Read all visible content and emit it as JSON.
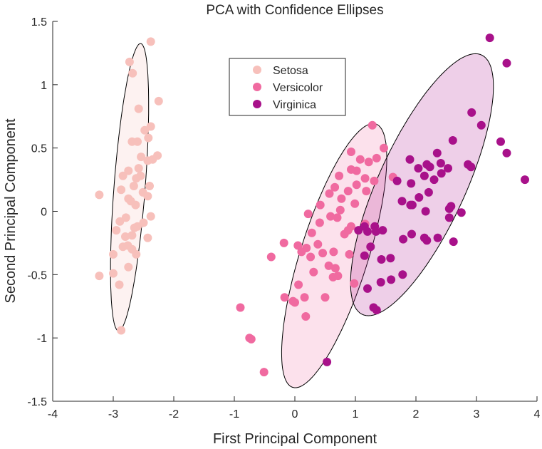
{
  "chart_data": {
    "type": "scatter",
    "title": "PCA with Confidence Ellipses",
    "xlabel": "First Principal Component",
    "ylabel": "Second Principal Component",
    "xlim": [
      -4,
      4
    ],
    "ylim": [
      -1.5,
      1.5
    ],
    "xticks": [
      -4,
      -3,
      -2,
      -1,
      0,
      1,
      2,
      3,
      4
    ],
    "yticks": [
      -1.5,
      -1,
      -0.5,
      0,
      0.5,
      1,
      1.5
    ],
    "xtick_labels": [
      "-4",
      "-3",
      "-2",
      "-1",
      "0",
      "1",
      "2",
      "3",
      "4"
    ],
    "ytick_labels": [
      "-1.5",
      "-1",
      "-0.5",
      "0",
      "0.5",
      "1",
      "1.5"
    ],
    "grid": false,
    "legend_position": "top-center",
    "series": [
      {
        "name": "Setosa",
        "color": "#f7c0bb",
        "ellipse": {
          "center": [
            -2.73,
            0.19
          ],
          "semi_major": 1.15,
          "semi_minor": 0.255,
          "angle_deg": 80.5
        },
        "points": [
          [
            -2.38,
            1.34
          ],
          [
            -2.73,
            1.18
          ],
          [
            -2.68,
            1.09
          ],
          [
            -2.25,
            0.87
          ],
          [
            -2.58,
            0.81
          ],
          [
            -2.38,
            0.67
          ],
          [
            -2.48,
            0.64
          ],
          [
            -2.42,
            0.58
          ],
          [
            -2.69,
            0.55
          ],
          [
            -2.6,
            0.55
          ],
          [
            -2.27,
            0.44
          ],
          [
            -2.54,
            0.43
          ],
          [
            -2.35,
            0.41
          ],
          [
            -2.43,
            0.4
          ],
          [
            -2.58,
            0.34
          ],
          [
            -2.75,
            0.32
          ],
          [
            -2.84,
            0.28
          ],
          [
            -2.55,
            0.28
          ],
          [
            -2.62,
            0.26
          ],
          [
            -2.4,
            0.2
          ],
          [
            -2.66,
            0.2
          ],
          [
            -2.87,
            0.17
          ],
          [
            -2.51,
            0.15
          ],
          [
            -2.43,
            0.12
          ],
          [
            -2.75,
            0.1
          ],
          [
            -2.71,
            0.08
          ],
          [
            -2.63,
            0.05
          ],
          [
            -3.23,
            0.13
          ],
          [
            -2.38,
            -0.04
          ],
          [
            -2.79,
            -0.05
          ],
          [
            -2.89,
            -0.08
          ],
          [
            -2.5,
            -0.09
          ],
          [
            -2.6,
            -0.12
          ],
          [
            -2.65,
            -0.13
          ],
          [
            -2.95,
            -0.15
          ],
          [
            -2.69,
            -0.19
          ],
          [
            -2.8,
            -0.2
          ],
          [
            -2.43,
            -0.21
          ],
          [
            -2.76,
            -0.27
          ],
          [
            -2.69,
            -0.3
          ],
          [
            -2.84,
            -0.28
          ],
          [
            -2.62,
            -0.34
          ],
          [
            -3.0,
            -0.34
          ],
          [
            -2.75,
            -0.44
          ],
          [
            -3.0,
            -0.49
          ],
          [
            -3.23,
            -0.51
          ],
          [
            -2.9,
            -0.58
          ],
          [
            -2.87,
            -0.94
          ]
        ]
      },
      {
        "name": "Versicolor",
        "color": "#f06aa0",
        "ellipse": {
          "center": [
            0.65,
            -0.35
          ],
          "semi_major": 1.27,
          "semi_minor": 0.48,
          "angle_deg": 52
        },
        "points": [
          [
            1.28,
            0.68
          ],
          [
            1.47,
            0.5
          ],
          [
            0.93,
            0.47
          ],
          [
            1.08,
            0.41
          ],
          [
            1.35,
            0.42
          ],
          [
            1.22,
            0.39
          ],
          [
            0.93,
            0.33
          ],
          [
            1.02,
            0.32
          ],
          [
            1.62,
            0.27
          ],
          [
            1.31,
            0.24
          ],
          [
            0.73,
            0.28
          ],
          [
            1.16,
            0.26
          ],
          [
            1.02,
            0.21
          ],
          [
            0.66,
            0.19
          ],
          [
            0.88,
            0.16
          ],
          [
            0.57,
            0.14
          ],
          [
            1.18,
            0.16
          ],
          [
            0.77,
            0.1
          ],
          [
            0.42,
            0.05
          ],
          [
            0.99,
            0.06
          ],
          [
            0.75,
            0.01
          ],
          [
            0.22,
            -0.02
          ],
          [
            0.59,
            -0.04
          ],
          [
            0.41,
            -0.09
          ],
          [
            0.7,
            -0.05
          ],
          [
            1.16,
            -0.1
          ],
          [
            0.93,
            -0.12
          ],
          [
            0.88,
            -0.15
          ],
          [
            0.82,
            -0.18
          ],
          [
            0.28,
            -0.17
          ],
          [
            -0.18,
            -0.25
          ],
          [
            0.05,
            -0.27
          ],
          [
            0.38,
            -0.26
          ],
          [
            0.19,
            -0.29
          ],
          [
            0.64,
            -0.32
          ],
          [
            0.11,
            -0.32
          ],
          [
            0.26,
            -0.36
          ],
          [
            0.46,
            -0.33
          ],
          [
            0.9,
            -0.34
          ],
          [
            -0.39,
            -0.36
          ],
          [
            0.56,
            -0.43
          ],
          [
            0.67,
            -0.45
          ],
          [
            0.31,
            -0.48
          ],
          [
            0.71,
            -0.51
          ],
          [
            0.63,
            -0.52
          ],
          [
            0.06,
            -0.58
          ],
          [
            0.98,
            -0.57
          ],
          [
            -0.17,
            -0.68
          ],
          [
            0.16,
            -0.68
          ],
          [
            -0.03,
            -0.71
          ],
          [
            0.0,
            -0.72
          ],
          [
            0.5,
            -0.68
          ],
          [
            0.18,
            -0.83
          ],
          [
            -0.75,
            -1.0
          ],
          [
            -0.72,
            -1.01
          ],
          [
            -0.9,
            -0.76
          ],
          [
            -0.51,
            -1.27
          ]
        ]
      },
      {
        "name": "Virginica",
        "color": "#a8118a",
        "ellipse": {
          "center": [
            2.1,
            0.21
          ],
          "semi_major": 1.47,
          "semi_minor": 0.55,
          "angle_deg": 40
        },
        "points": [
          [
            3.22,
            1.37
          ],
          [
            3.5,
            1.17
          ],
          [
            2.92,
            0.78
          ],
          [
            3.08,
            0.68
          ],
          [
            2.61,
            0.56
          ],
          [
            3.4,
            0.55
          ],
          [
            3.5,
            0.46
          ],
          [
            2.35,
            0.46
          ],
          [
            1.9,
            0.41
          ],
          [
            2.18,
            0.37
          ],
          [
            2.41,
            0.38
          ],
          [
            2.86,
            0.37
          ],
          [
            2.04,
            0.34
          ],
          [
            2.23,
            0.35
          ],
          [
            2.53,
            0.34
          ],
          [
            2.91,
            0.35
          ],
          [
            2.42,
            0.3
          ],
          [
            3.8,
            0.25
          ],
          [
            2.14,
            0.28
          ],
          [
            2.3,
            0.25
          ],
          [
            1.69,
            0.24
          ],
          [
            1.92,
            0.22
          ],
          [
            2.21,
            0.15
          ],
          [
            2.05,
            0.11
          ],
          [
            1.94,
            0.05
          ],
          [
            1.77,
            0.08
          ],
          [
            1.91,
            0.05
          ],
          [
            2.58,
            0.04
          ],
          [
            2.16,
            0.0
          ],
          [
            2.55,
            0.02
          ],
          [
            2.75,
            -0.01
          ],
          [
            2.55,
            -0.05
          ],
          [
            1.15,
            -0.12
          ],
          [
            1.32,
            -0.12
          ],
          [
            1.34,
            -0.16
          ],
          [
            1.05,
            -0.15
          ],
          [
            1.2,
            -0.16
          ],
          [
            1.45,
            -0.15
          ],
          [
            1.93,
            -0.18
          ],
          [
            1.79,
            -0.22
          ],
          [
            2.14,
            -0.21
          ],
          [
            2.18,
            -0.23
          ],
          [
            2.36,
            -0.21
          ],
          [
            2.62,
            -0.24
          ],
          [
            1.25,
            -0.28
          ],
          [
            1.15,
            -0.35
          ],
          [
            1.58,
            -0.37
          ],
          [
            1.43,
            -0.38
          ],
          [
            1.78,
            -0.5
          ],
          [
            1.59,
            -0.54
          ],
          [
            1.42,
            -0.56
          ],
          [
            1.2,
            -0.61
          ],
          [
            1.3,
            -0.76
          ],
          [
            1.35,
            -0.78
          ],
          [
            0.53,
            -1.19
          ]
        ]
      }
    ]
  }
}
